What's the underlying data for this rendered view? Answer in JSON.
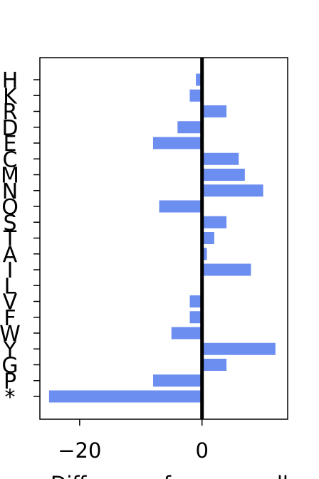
{
  "chart_data": {
    "type": "bar",
    "orientation": "horizontal",
    "categories": [
      "H",
      "K",
      "R",
      "D",
      "E",
      "C",
      "M",
      "N",
      "Q",
      "S",
      "T",
      "A",
      "I",
      "L",
      "V",
      "F",
      "W",
      "Y",
      "G",
      "P",
      "*"
    ],
    "values": [
      -1,
      -2,
      4,
      -4,
      -8,
      6,
      7,
      10,
      -7,
      4,
      2,
      0.8,
      8,
      0,
      -2,
      -2,
      -5,
      12,
      4,
      -8,
      -25
    ],
    "xticks": [
      -20,
      0
    ],
    "xtick_labels": [
      "−20",
      "0"
    ],
    "xlim": [
      -26.5,
      14
    ],
    "xlabel": "Difference from overall",
    "ylabel": "",
    "title": "",
    "grid": false,
    "zero_line": true,
    "bar_color": "#6b8ef0"
  }
}
